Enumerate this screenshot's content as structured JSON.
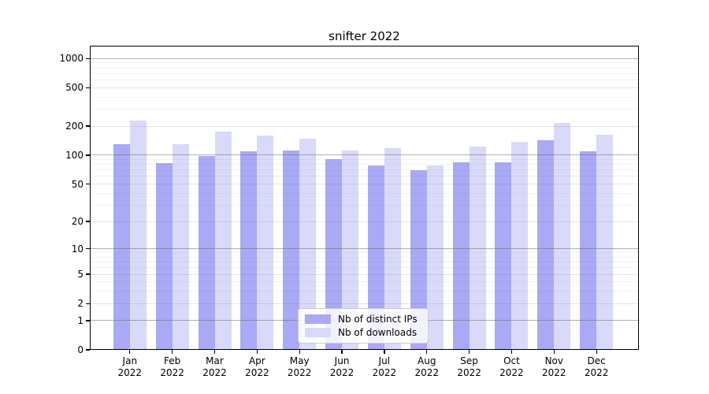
{
  "chart_data": {
    "type": "bar",
    "title": "snifter 2022",
    "categories": [
      "Jan 2022",
      "Feb 2022",
      "Mar 2022",
      "Apr 2022",
      "May 2022",
      "Jun 2022",
      "Jul 2022",
      "Aug 2022",
      "Sep 2022",
      "Oct 2022",
      "Nov 2022",
      "Dec 2022"
    ],
    "series": [
      {
        "name": "Nb of distinct IPs",
        "color": "#a9a9f5",
        "values": [
          131,
          82,
          98,
          109,
          112,
          91,
          78,
          70,
          84,
          84,
          144,
          110
        ]
      },
      {
        "name": "Nb of downloads",
        "color": "#d9d9f9",
        "values": [
          229,
          130,
          176,
          159,
          149,
          112,
          119,
          78,
          123,
          138,
          215,
          162
        ]
      }
    ],
    "xlabel": "",
    "ylabel": "",
    "yscale": "log1p",
    "yticks": [
      0,
      1,
      2,
      5,
      10,
      20,
      50,
      100,
      200,
      500,
      1000
    ],
    "ylim": [
      0,
      1330
    ],
    "grid": true,
    "legend_position": "lower center",
    "colors": {
      "grid_line": "#666666",
      "axis": "#000000",
      "background": "#ffffff",
      "text": "#000000"
    }
  }
}
